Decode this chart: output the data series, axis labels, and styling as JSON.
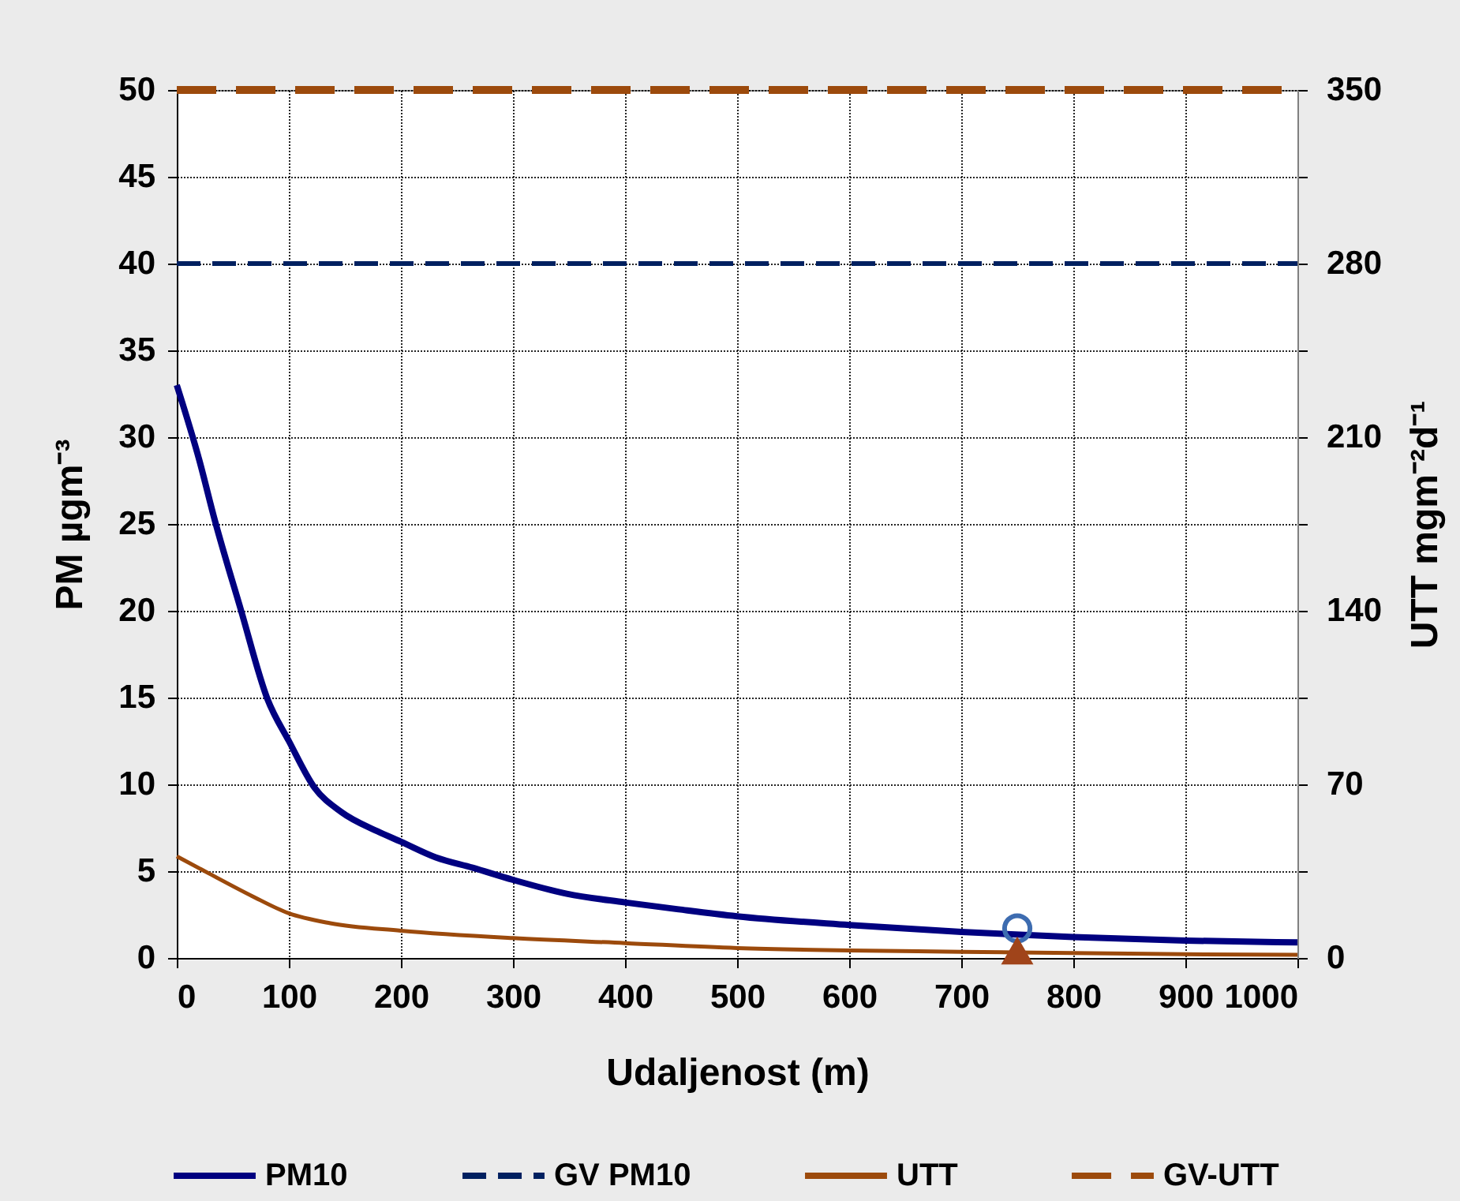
{
  "chart_data": {
    "type": "line",
    "xlabel": "Udaljenost (m)",
    "ylabel": "PM  µgm⁻³",
    "y2label": "UTT  mgm⁻²d⁻¹",
    "xlim": [
      0,
      1000
    ],
    "xticks": [
      0,
      100,
      200,
      300,
      400,
      500,
      600,
      700,
      800,
      900,
      1000
    ],
    "ylim": [
      0,
      50
    ],
    "yticks": [
      0,
      5,
      10,
      15,
      20,
      25,
      30,
      35,
      40,
      45,
      50
    ],
    "y2lim": [
      0,
      350
    ],
    "y2ticks": [
      0,
      {
        "value": 35,
        "label": null
      },
      70,
      {
        "value": 105,
        "label": null
      },
      140,
      {
        "value": 175,
        "label": null
      },
      210,
      {
        "value": 245,
        "label": null
      },
      280,
      {
        "value": 315,
        "label": null
      },
      350
    ],
    "grid": true,
    "legend": "bottom",
    "series": [
      {
        "name": "PM10",
        "color": "#000080",
        "line_style": "solid",
        "x": [
          0,
          20,
          34,
          57,
          81,
          100,
          123,
          147,
          179,
          200,
          231,
          264,
          300,
          348,
          400,
          448,
          500,
          600,
          700,
          800,
          900,
          1000
        ],
        "values": [
          33,
          28.7,
          25.2,
          20.1,
          14.9,
          12.5,
          9.8,
          8.4,
          7.3,
          6.7,
          5.8,
          5.2,
          4.5,
          3.7,
          3.2,
          2.8,
          2.4,
          1.9,
          1.5,
          1.2,
          1.0,
          0.9
        ]
      },
      {
        "name": "GV PM10",
        "color": "#002060",
        "line_style": "dashed",
        "x": [
          0,
          1000
        ],
        "values": [
          40,
          40
        ]
      },
      {
        "name": "UTT",
        "color": "#9c4a0c",
        "line_style": "solid",
        "axis": "y2",
        "x": [
          0,
          29,
          67,
          100,
          137,
          200,
          300,
          400,
          500,
          600,
          700,
          800,
          900,
          1000
        ],
        "values": [
          41,
          34,
          25,
          18,
          14,
          11,
          8,
          6,
          4,
          3,
          2.5,
          2,
          1.5,
          1.3
        ]
      },
      {
        "name": "GV-UTT",
        "color": "#9c4a0c",
        "line_style": "dashed",
        "axis": "y2",
        "x": [
          0,
          1000
        ],
        "values": [
          350,
          350
        ]
      },
      {
        "type": "scatter",
        "marker": "circle",
        "color": "#3d6cb0",
        "x": [
          750
        ],
        "values": [
          1.7
        ]
      },
      {
        "type": "scatter",
        "marker": "triangle",
        "color": "#a0441a",
        "axis": "y2",
        "x": [
          750
        ],
        "values": [
          3
        ]
      }
    ]
  }
}
